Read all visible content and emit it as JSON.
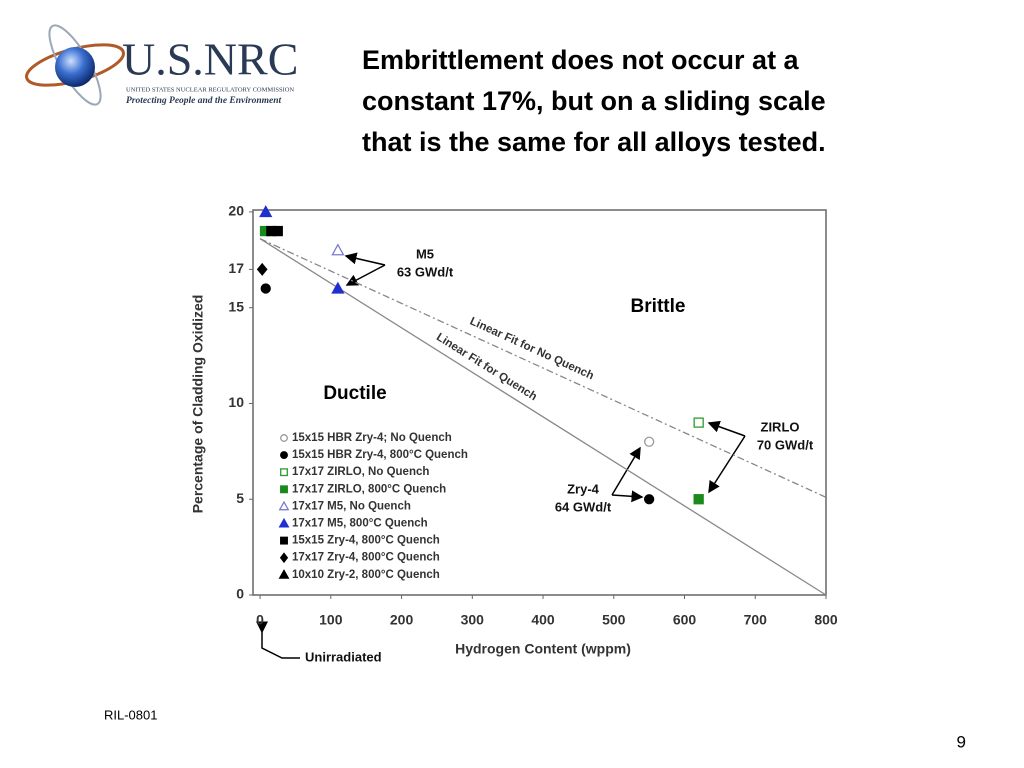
{
  "header": {
    "logo": {
      "name": "U.S.NRC",
      "agency": "UNITED STATES NUCLEAR REGULATORY COMMISSION",
      "motto": "Protecting People and the Environment"
    },
    "title": [
      "Embrittlement does not occur at a",
      "constant 17%, but on a sliding scale",
      "that is the same for all alloys tested."
    ]
  },
  "chart_data": {
    "type": "scatter",
    "xlabel": "Hydrogen Content (wppm)",
    "ylabel": "Percentage of Cladding Oxidized",
    "xlim": [
      -10,
      800
    ],
    "ylim": [
      0,
      20.1
    ],
    "xticks": [
      0,
      100,
      200,
      300,
      400,
      500,
      600,
      700,
      800
    ],
    "yticks": [
      0,
      5,
      10,
      15,
      17,
      20
    ],
    "series": [
      {
        "name": "15x15 HBR Zry-4; No Quench",
        "color": "#999999",
        "marker": "circle",
        "filled": false,
        "x": [
          550
        ],
        "y": [
          8
        ]
      },
      {
        "name": "15x15 HBR Zry-4, 800°C Quench",
        "color": "#000000",
        "marker": "circle",
        "filled": true,
        "x": [
          550,
          8
        ],
        "y": [
          5,
          16
        ]
      },
      {
        "name": "17x17 ZIRLO, No Quench",
        "color": "#2e9b2e",
        "marker": "square",
        "filled": false,
        "x": [
          620
        ],
        "y": [
          9
        ]
      },
      {
        "name": "17x17 ZIRLO, 800°C Quench",
        "color": "#1a8a1a",
        "marker": "square",
        "filled": true,
        "x": [
          620,
          7
        ],
        "y": [
          5,
          19
        ]
      },
      {
        "name": "17x17 M5, No Quench",
        "color": "#7a7ad0",
        "marker": "triangle",
        "filled": false,
        "x": [
          110
        ],
        "y": [
          18
        ]
      },
      {
        "name": "17x17 M5, 800°C Quench",
        "color": "#1f2fd0",
        "marker": "triangle",
        "filled": true,
        "x": [
          110,
          8
        ],
        "y": [
          16,
          20
        ]
      },
      {
        "name": "15x15 Zry-4, 800°C Quench",
        "color": "#000000",
        "marker": "square",
        "filled": true,
        "x": [
          16,
          25
        ],
        "y": [
          19,
          19
        ]
      },
      {
        "name": "17x17 Zry-4, 800°C Quench",
        "color": "#000000",
        "marker": "diamond",
        "filled": true,
        "x": [
          3
        ],
        "y": [
          17
        ]
      },
      {
        "name": "10x10 Zry-2, 800°C Quench",
        "color": "#000000",
        "marker": "triangle",
        "filled": true,
        "x": [],
        "y": []
      }
    ],
    "fits": [
      {
        "name": "Linear Fit for No Quench",
        "dash": true,
        "x": [
          0,
          800
        ],
        "y": [
          18.6,
          5.1
        ]
      },
      {
        "name": "Linear Fit for Quench",
        "dash": false,
        "x": [
          0,
          800
        ],
        "y": [
          18.6,
          0
        ]
      }
    ],
    "annotations": [
      [
        "M5",
        "63 GWd/t"
      ],
      [
        "ZIRLO",
        "70 GWd/t"
      ],
      [
        "Zry-4",
        "64 GWd/t"
      ]
    ],
    "regions": [
      "Brittle",
      "Ductile"
    ],
    "x_note": "Unirradiated"
  },
  "footer": {
    "source": "RIL-0801",
    "page": "9"
  }
}
